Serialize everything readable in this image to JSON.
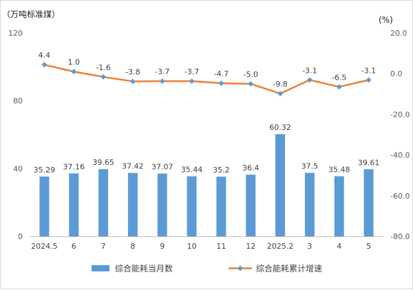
{
  "chart_data": {
    "type": "bar+line",
    "categories": [
      "2024.5",
      "6",
      "7",
      "8",
      "9",
      "10",
      "11",
      "12",
      "2025.2",
      "3",
      "4",
      "5"
    ],
    "series": [
      {
        "name": "综合能耗当月数",
        "type": "bar",
        "axis": "left",
        "color": "#5b9bd5",
        "values": [
          35.29,
          37.16,
          39.65,
          37.42,
          37.07,
          35.44,
          35.2,
          36.4,
          60.32,
          37.5,
          35.48,
          39.61
        ],
        "labels": [
          "35.29",
          "37.16",
          "39.65",
          "37.42",
          "37.07",
          "35.44",
          "35.2",
          "36.4",
          "60.32",
          "37.5",
          "35.48",
          "39.61"
        ]
      },
      {
        "name": "综合能耗累计增速",
        "type": "line",
        "axis": "right",
        "color": "#ed7d31",
        "marker_color": "#5b9bd5",
        "values": [
          4.4,
          1.0,
          -1.6,
          -3.8,
          -3.7,
          -3.7,
          -4.7,
          -5.0,
          -9.8,
          -3.1,
          -6.5,
          -3.1
        ],
        "labels": [
          "4.4",
          "1.0",
          "-1.6",
          "-3.8",
          "-3.7",
          "-3.7",
          "-4.7",
          "-5.0",
          "-9.8",
          "-3.1",
          "-6.5",
          "-3.1"
        ]
      }
    ],
    "y_left": {
      "label": "（万吨标准煤）",
      "range": [
        0,
        120
      ],
      "ticks": [
        0,
        40,
        80,
        120
      ],
      "tick_labels": [
        "0",
        "40",
        "80",
        "120"
      ]
    },
    "y_right": {
      "label": "(%)",
      "range": [
        -80,
        20
      ],
      "ticks": [
        20,
        0,
        -20,
        -40,
        -60,
        -80
      ],
      "tick_labels": [
        "20.0",
        "0.0",
        "-20.0",
        "-40.0",
        "-60.0",
        "-80.0"
      ]
    },
    "grid": false,
    "legend": "bottom"
  }
}
